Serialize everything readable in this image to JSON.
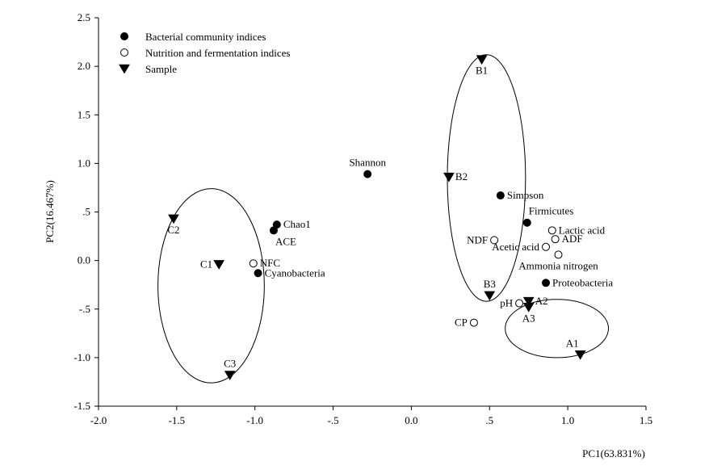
{
  "chart_data": {
    "type": "scatter",
    "xlabel": "PC1(63.831%)",
    "ylabel": "PC2(16.467%)",
    "xlim": [
      -2.0,
      1.5
    ],
    "ylim": [
      -1.5,
      2.5
    ],
    "xticks": [
      {
        "value": -2.0,
        "label": "-2.0"
      },
      {
        "value": -1.5,
        "label": "-1.5"
      },
      {
        "value": -1.0,
        "label": "-1.0"
      },
      {
        "value": -0.5,
        "label": "-.5"
      },
      {
        "value": 0.0,
        "label": "0.0"
      },
      {
        "value": 0.5,
        "label": ".5"
      },
      {
        "value": 1.0,
        "label": "1.0"
      },
      {
        "value": 1.5,
        "label": "1.5"
      }
    ],
    "yticks": [
      {
        "value": -1.5,
        "label": "-1.5"
      },
      {
        "value": -1.0,
        "label": "-1.0"
      },
      {
        "value": -0.5,
        "label": "-.5"
      },
      {
        "value": 0.0,
        "label": "0.0"
      },
      {
        "value": 0.5,
        "label": ".5"
      },
      {
        "value": 1.0,
        "label": "1.0"
      },
      {
        "value": 1.5,
        "label": "1.5"
      },
      {
        "value": 2.0,
        "label": "2.0"
      },
      {
        "value": 2.5,
        "label": "2.5"
      }
    ],
    "grid": false,
    "legend_position": "top-left",
    "legend": [
      {
        "label": "Bacterial community indices",
        "marker": "filled-circle"
      },
      {
        "label": "Nutrition and fermentation indices",
        "marker": "open-circle"
      },
      {
        "label": "Sample",
        "marker": "triangle-down"
      }
    ],
    "series": [
      {
        "marker": "filled-circle",
        "points": [
          {
            "label": "Shannon",
            "x": -0.28,
            "y": 0.89,
            "label_pos": "above"
          },
          {
            "label": "Simpson",
            "x": 0.57,
            "y": 0.67,
            "label_pos": "right"
          },
          {
            "label": "Chao1",
            "x": -0.86,
            "y": 0.37,
            "label_pos": "right"
          },
          {
            "label": "ACE",
            "x": -0.88,
            "y": 0.31,
            "label_pos": "below-right"
          },
          {
            "label": "Cyanobacteria",
            "x": -0.98,
            "y": -0.13,
            "label_pos": "right"
          },
          {
            "label": "Firmicutes",
            "x": 0.74,
            "y": 0.39,
            "label_pos": "above-right"
          },
          {
            "label": "Proteobacteria",
            "x": 0.86,
            "y": -0.23,
            "label_pos": "right"
          }
        ]
      },
      {
        "marker": "open-circle",
        "points": [
          {
            "label": "Lactic acid",
            "x": 0.9,
            "y": 0.31,
            "label_pos": "right"
          },
          {
            "label": "ADF",
            "x": 0.92,
            "y": 0.22,
            "label_pos": "right"
          },
          {
            "label": "NDF",
            "x": 0.53,
            "y": 0.21,
            "label_pos": "left"
          },
          {
            "label": "Acetic acid",
            "x": 0.86,
            "y": 0.14,
            "label_pos": "left"
          },
          {
            "label": "Ammonia nitrogen",
            "x": 0.94,
            "y": 0.06,
            "label_pos": "below"
          },
          {
            "label": "NFC",
            "x": -1.01,
            "y": -0.03,
            "label_pos": "right"
          },
          {
            "label": "pH",
            "x": 0.69,
            "y": -0.44,
            "label_pos": "left"
          },
          {
            "label": "CP",
            "x": 0.4,
            "y": -0.64,
            "label_pos": "left"
          }
        ]
      },
      {
        "marker": "triangle-down",
        "points": [
          {
            "label": "B1",
            "x": 0.45,
            "y": 2.07,
            "label_pos": "below"
          },
          {
            "label": "B2",
            "x": 0.24,
            "y": 0.86,
            "label_pos": "right"
          },
          {
            "label": "B3",
            "x": 0.5,
            "y": -0.36,
            "label_pos": "above"
          },
          {
            "label": "A1",
            "x": 1.08,
            "y": -0.97,
            "label_pos": "above-left"
          },
          {
            "label": "A2",
            "x": 0.75,
            "y": -0.42,
            "label_pos": "right"
          },
          {
            "label": "A3",
            "x": 0.75,
            "y": -0.48,
            "label_pos": "below"
          },
          {
            "label": "C1",
            "x": -1.23,
            "y": -0.04,
            "label_pos": "left"
          },
          {
            "label": "C2",
            "x": -1.52,
            "y": 0.43,
            "label_pos": "below"
          },
          {
            "label": "C3",
            "x": -1.16,
            "y": -1.18,
            "label_pos": "above"
          }
        ]
      }
    ],
    "group_ellipses": [
      {
        "cx": 0.48,
        "cy": 0.85,
        "rx": 0.25,
        "ry": 1.27
      },
      {
        "cx": 0.93,
        "cy": -0.7,
        "rx": 0.33,
        "ry": 0.3
      },
      {
        "cx": -1.28,
        "cy": -0.26,
        "rx": 0.34,
        "ry": 1.0
      }
    ]
  }
}
